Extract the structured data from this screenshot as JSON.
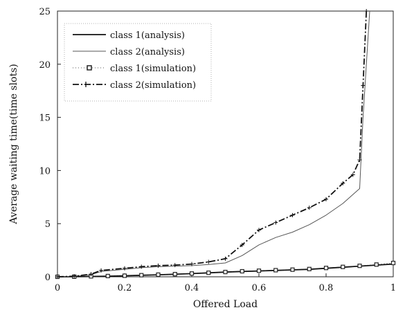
{
  "chart_data": {
    "type": "line",
    "xlabel": "Offered Load",
    "ylabel": "Average waiting time(time slots)",
    "xlim": [
      0,
      1
    ],
    "ylim": [
      0,
      25
    ],
    "xticks": [
      "0",
      "0.2",
      "0.4",
      "0.6",
      "0.8",
      "1"
    ],
    "yticks": [
      "0",
      "5",
      "10",
      "15",
      "20",
      "25"
    ],
    "grid": false,
    "legend_position": "top-left",
    "series": [
      {
        "name": "class 1(analysis)",
        "color": "#111111",
        "style": "solid",
        "x": [
          0,
          0.05,
          0.1,
          0.15,
          0.2,
          0.25,
          0.3,
          0.35,
          0.4,
          0.45,
          0.5,
          0.55,
          0.6,
          0.65,
          0.7,
          0.75,
          0.8,
          0.85,
          0.9,
          0.95,
          1.0
        ],
        "y": [
          0,
          0.01,
          0.03,
          0.06,
          0.1,
          0.14,
          0.19,
          0.24,
          0.3,
          0.37,
          0.44,
          0.5,
          0.55,
          0.6,
          0.65,
          0.7,
          0.8,
          0.9,
          1.0,
          1.1,
          1.2
        ]
      },
      {
        "name": "class 2(analysis)",
        "color": "#555555",
        "style": "thin",
        "x": [
          0,
          0.05,
          0.1,
          0.13,
          0.2,
          0.25,
          0.3,
          0.35,
          0.4,
          0.45,
          0.5,
          0.55,
          0.6,
          0.65,
          0.7,
          0.75,
          0.8,
          0.85,
          0.9,
          0.91,
          0.93
        ],
        "y": [
          0,
          0.05,
          0.2,
          0.5,
          0.7,
          0.85,
          0.95,
          1.0,
          1.05,
          1.15,
          1.3,
          2.0,
          3.0,
          3.7,
          4.2,
          4.9,
          5.8,
          6.9,
          8.3,
          15,
          25
        ]
      },
      {
        "name": "class 1(simulation)",
        "color": "#222222",
        "style": "square-markers",
        "x": [
          0,
          0.05,
          0.1,
          0.15,
          0.2,
          0.25,
          0.3,
          0.35,
          0.4,
          0.45,
          0.5,
          0.55,
          0.6,
          0.65,
          0.7,
          0.75,
          0.8,
          0.85,
          0.9,
          0.95,
          1.0
        ],
        "y": [
          0,
          0.01,
          0.04,
          0.07,
          0.1,
          0.15,
          0.2,
          0.25,
          0.31,
          0.38,
          0.45,
          0.52,
          0.57,
          0.62,
          0.67,
          0.73,
          0.83,
          0.93,
          1.03,
          1.15,
          1.3
        ]
      },
      {
        "name": "class 2(simulation)",
        "color": "#111111",
        "style": "dash-dot",
        "x": [
          0,
          0.05,
          0.1,
          0.13,
          0.2,
          0.25,
          0.3,
          0.35,
          0.4,
          0.45,
          0.5,
          0.55,
          0.6,
          0.65,
          0.7,
          0.75,
          0.8,
          0.85,
          0.88,
          0.9,
          0.91,
          0.92
        ],
        "y": [
          0,
          0.05,
          0.25,
          0.6,
          0.8,
          0.95,
          1.05,
          1.1,
          1.2,
          1.4,
          1.7,
          3.0,
          4.4,
          5.1,
          5.8,
          6.5,
          7.3,
          8.8,
          9.6,
          11.0,
          18.0,
          25
        ]
      }
    ]
  }
}
